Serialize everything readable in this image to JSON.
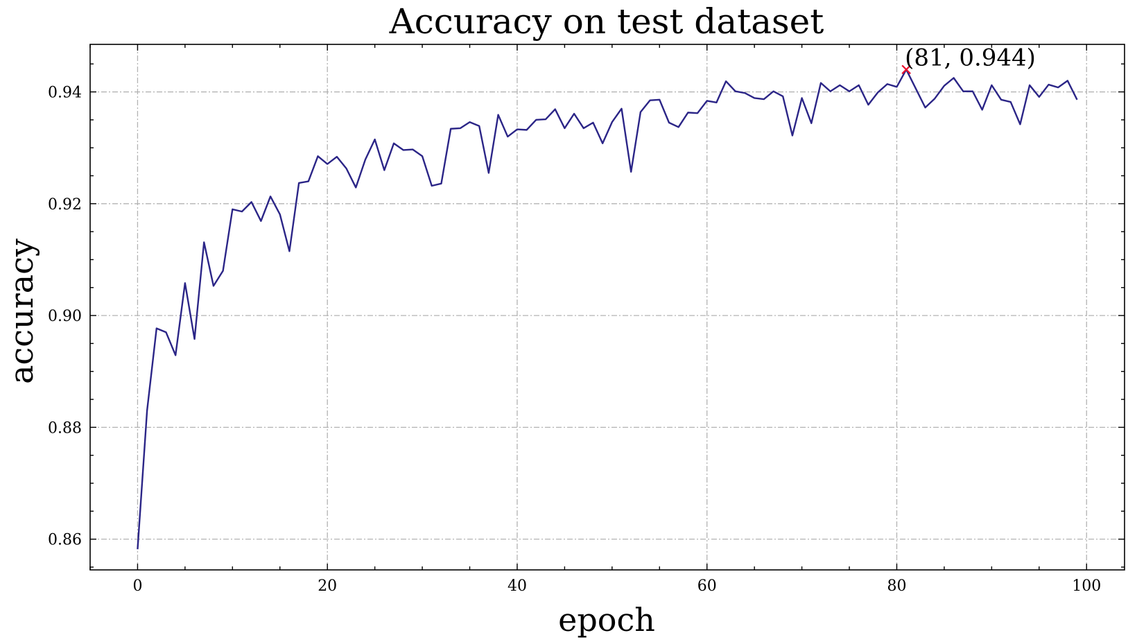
{
  "chart_data": {
    "type": "line",
    "title": "Accuracy on test dataset",
    "xlabel": "epoch",
    "ylabel": "accuracy",
    "xlim": [
      -5,
      104
    ],
    "ylim": [
      0.8545,
      0.9485
    ],
    "xticks": [
      0,
      20,
      40,
      60,
      80,
      100
    ],
    "yticks": [
      0.86,
      0.88,
      0.9,
      0.92,
      0.94
    ],
    "xtick_labels": [
      "0",
      "20",
      "40",
      "60",
      "80",
      "100"
    ],
    "ytick_labels": [
      "0.86",
      "0.88",
      "0.90",
      "0.92",
      "0.94"
    ],
    "grid": true,
    "series_color": "#2b2587",
    "marker_color": "#e8112d",
    "series": [
      {
        "values": [
          0.8582,
          0.883,
          0.8977,
          0.897,
          0.8929,
          0.9058,
          0.8958,
          0.9131,
          0.9053,
          0.908,
          0.919,
          0.9186,
          0.9203,
          0.9169,
          0.9213,
          0.9181,
          0.9115,
          0.9237,
          0.924,
          0.9285,
          0.9271,
          0.9284,
          0.9263,
          0.9229,
          0.9279,
          0.9315,
          0.926,
          0.9308,
          0.9296,
          0.9297,
          0.9285,
          0.9232,
          0.9236,
          0.9334,
          0.9335,
          0.9346,
          0.9339,
          0.9255,
          0.9359,
          0.932,
          0.9333,
          0.9332,
          0.935,
          0.9351,
          0.9369,
          0.9335,
          0.9361,
          0.9335,
          0.9345,
          0.9308,
          0.9346,
          0.937,
          0.9257,
          0.9364,
          0.9385,
          0.9386,
          0.9345,
          0.9337,
          0.9363,
          0.9362,
          0.9384,
          0.9381,
          0.9419,
          0.9401,
          0.9398,
          0.9389,
          0.9387,
          0.9401,
          0.9392,
          0.9322,
          0.9389,
          0.9344,
          0.9416,
          0.9401,
          0.9412,
          0.9401,
          0.9412,
          0.9377,
          0.9399,
          0.9414,
          0.9409,
          0.944,
          0.9406,
          0.9372,
          0.9388,
          0.9411,
          0.9425,
          0.9401,
          0.9401,
          0.9368,
          0.9412,
          0.9386,
          0.9382,
          0.9342,
          0.9412,
          0.9391,
          0.9413,
          0.9408,
          0.942,
          0.9386
        ]
      }
    ],
    "annotation": {
      "x": 81,
      "y": 0.944,
      "text": "(81, 0.944)"
    }
  }
}
